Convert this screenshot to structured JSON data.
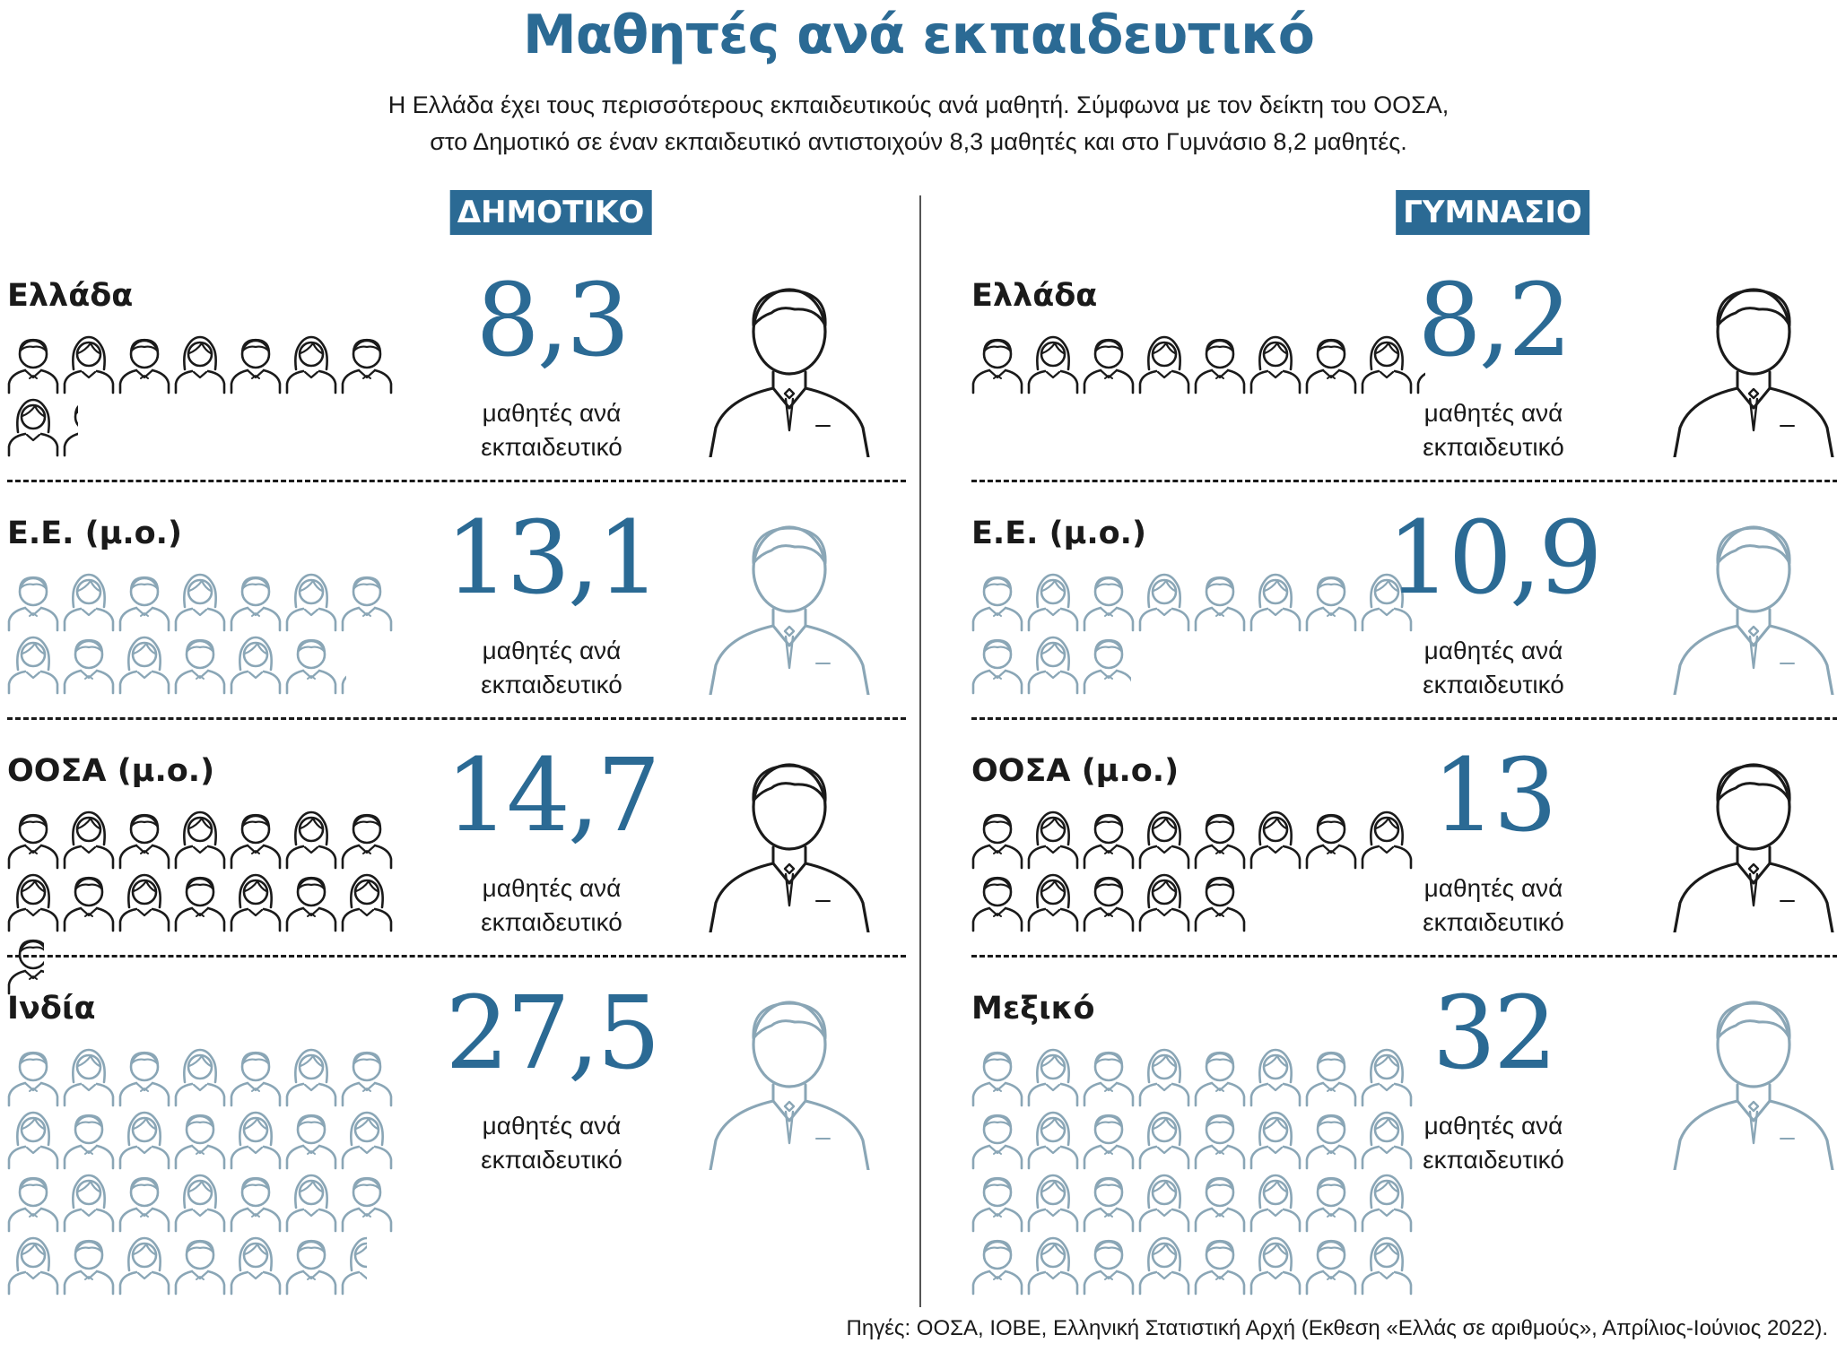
{
  "title": "Μαθητές ανά εκπαιδευτικό",
  "subtitle": [
    "Η Ελλάδα έχει τους περισσότερους εκπαιδευτικούς ανά μαθητή. Σύμφωνα με τον δείκτη του ΟΟΣΑ,",
    "στο Δημοτικό σε έναν εκπαιδευτικό αντιστοιχούν 8,3 μαθητές και στο Γυμνάσιο 8,2 μαθητές."
  ],
  "unit_label": [
    "μαθητές ανά",
    "εκπαιδευτικό"
  ],
  "colors": {
    "accent": "#2b6a94",
    "dark": "#1a1a1a",
    "light": "#8aa6b6"
  },
  "chart_data": [
    {
      "type": "pictogram",
      "title": "ΔΗΜΟΤΙΚΟ",
      "unit": "μαθητές ανά εκπαιδευτικό",
      "rows": [
        {
          "label": "Ελλάδα",
          "value": 8.3,
          "display": "8,3",
          "style": "dark"
        },
        {
          "label": "Ε.Ε. (μ.ο.)",
          "value": 13.1,
          "display": "13,1",
          "style": "light"
        },
        {
          "label": "ΟΟΣΑ (μ.ο.)",
          "value": 14.7,
          "display": "14,7",
          "style": "dark"
        },
        {
          "label": "Ινδία",
          "value": 27.5,
          "display": "27,5",
          "style": "light"
        }
      ]
    },
    {
      "type": "pictogram",
      "title": "ΓΥΜΝΑΣΙΟ",
      "unit": "μαθητές ανά εκπαιδευτικό",
      "rows": [
        {
          "label": "Ελλάδα",
          "value": 8.2,
          "display": "8,2",
          "style": "dark"
        },
        {
          "label": "Ε.Ε. (μ.ο.)",
          "value": 10.9,
          "display": "10,9",
          "style": "light"
        },
        {
          "label": "ΟΟΣΑ (μ.ο.)",
          "value": 13,
          "display": "13",
          "style": "dark"
        },
        {
          "label": "Μεξικό",
          "value": 32,
          "display": "32",
          "style": "light"
        }
      ]
    }
  ],
  "source": "Πηγές: ΟΟΣΑ, ΙΟΒΕ, Ελληνική Στατιστική Αρχή (Εκθεση «Ελλάς σε αριθμούς», Απρίλιος-Ιούνιος 2022)."
}
